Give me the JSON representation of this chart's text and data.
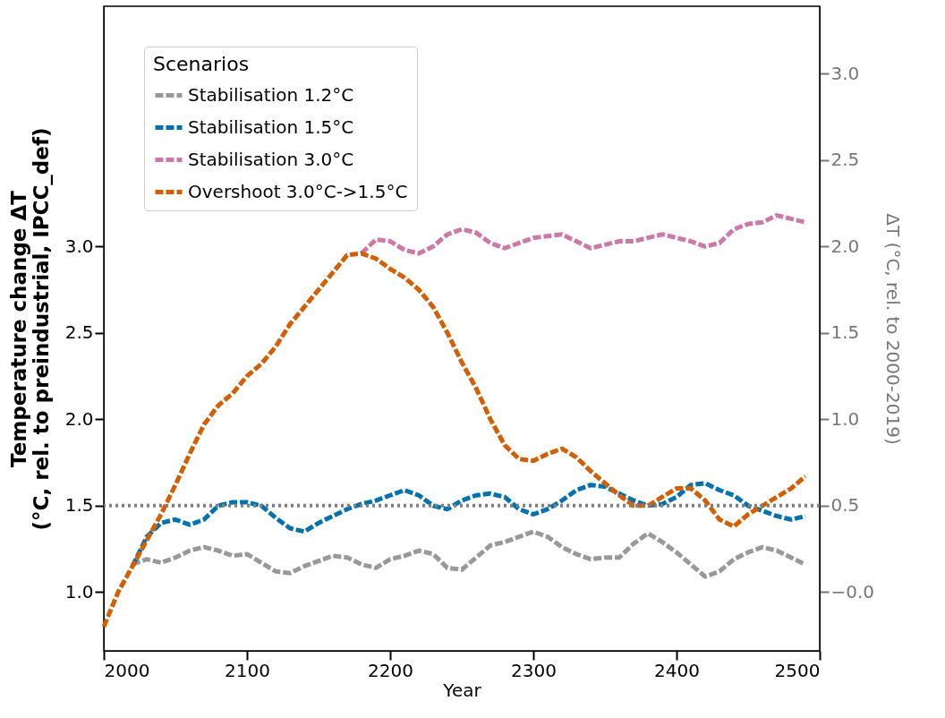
{
  "chart_data": {
    "type": "line",
    "xlabel": "Year",
    "ylabel": "Temperature change ΔT\n(°C, rel. to preindustrial, IPCC_def)",
    "y2label": "ΔT (°C, rel. to 2000-2019)",
    "legend_title": "Scenarios",
    "legend": "top left",
    "line_style": "dashed",
    "grid": false,
    "xlim": [
      2000,
      2500
    ],
    "xticks": [
      2000,
      2100,
      2200,
      2300,
      2400,
      2500
    ],
    "ylim": [
      0.66,
      4.39
    ],
    "yticks": [
      {
        "value": 1,
        "label": "1.0"
      },
      1.5,
      {
        "value": 2,
        "label": "2.0"
      },
      2.5,
      {
        "value": 3,
        "label": "3.0"
      }
    ],
    "y2lim": [
      -0.34,
      3.39
    ],
    "y2ticks": [
      {
        "value": 0,
        "label": "−0.0"
      },
      0.5,
      {
        "value": 1,
        "label": "1.0"
      },
      1.5,
      {
        "value": 2,
        "label": "2.0"
      },
      2.5,
      {
        "value": 3,
        "label": "3.0"
      }
    ],
    "ref_lines": [
      {
        "axis": "y",
        "value": 1.5,
        "color": "#808080",
        "line_style": "dotted"
      }
    ],
    "series": [
      {
        "name": "Stabilisation 1.2°C",
        "color": "#999999",
        "x": [
          2020,
          2030,
          2040,
          2050,
          2060,
          2070,
          2080,
          2090,
          2100,
          2110,
          2120,
          2130,
          2140,
          2150,
          2160,
          2170,
          2180,
          2190,
          2200,
          2210,
          2220,
          2230,
          2240,
          2250,
          2260,
          2270,
          2280,
          2290,
          2300,
          2310,
          2320,
          2330,
          2340,
          2350,
          2360,
          2370,
          2380,
          2390,
          2400,
          2410,
          2420,
          2430,
          2440,
          2450,
          2460,
          2470,
          2480,
          2490
        ],
        "values": [
          1.16,
          1.19,
          1.17,
          1.2,
          1.24,
          1.26,
          1.24,
          1.21,
          1.22,
          1.17,
          1.12,
          1.11,
          1.15,
          1.18,
          1.21,
          1.2,
          1.16,
          1.14,
          1.19,
          1.21,
          1.24,
          1.22,
          1.14,
          1.13,
          1.2,
          1.27,
          1.29,
          1.32,
          1.35,
          1.32,
          1.26,
          1.22,
          1.19,
          1.2,
          1.2,
          1.28,
          1.34,
          1.29,
          1.23,
          1.16,
          1.09,
          1.12,
          1.19,
          1.23,
          1.26,
          1.24,
          1.2,
          1.16
        ]
      },
      {
        "name": "Stabilisation 1.5°C",
        "color": "#0072b2",
        "x": [
          2020,
          2030,
          2040,
          2050,
          2060,
          2070,
          2080,
          2090,
          2100,
          2110,
          2120,
          2130,
          2140,
          2150,
          2160,
          2170,
          2180,
          2190,
          2200,
          2210,
          2220,
          2230,
          2240,
          2250,
          2260,
          2270,
          2280,
          2290,
          2300,
          2310,
          2320,
          2330,
          2340,
          2350,
          2360,
          2370,
          2380,
          2390,
          2400,
          2410,
          2420,
          2430,
          2440,
          2450,
          2460,
          2470,
          2480,
          2490
        ],
        "values": [
          1.15,
          1.32,
          1.4,
          1.42,
          1.39,
          1.42,
          1.5,
          1.52,
          1.52,
          1.5,
          1.43,
          1.37,
          1.35,
          1.4,
          1.44,
          1.48,
          1.51,
          1.53,
          1.56,
          1.59,
          1.56,
          1.5,
          1.48,
          1.53,
          1.56,
          1.57,
          1.55,
          1.48,
          1.45,
          1.48,
          1.53,
          1.59,
          1.62,
          1.61,
          1.57,
          1.53,
          1.5,
          1.51,
          1.55,
          1.62,
          1.63,
          1.59,
          1.56,
          1.5,
          1.47,
          1.44,
          1.42,
          1.44
        ]
      },
      {
        "name": "Stabilisation 3.0°C",
        "color": "#cc79a7",
        "x": [
          2180,
          2190,
          2200,
          2210,
          2220,
          2230,
          2240,
          2250,
          2260,
          2270,
          2280,
          2290,
          2300,
          2310,
          2320,
          2330,
          2340,
          2350,
          2360,
          2370,
          2380,
          2390,
          2400,
          2410,
          2420,
          2430,
          2440,
          2450,
          2460,
          2470,
          2480,
          2490
        ],
        "values": [
          2.96,
          3.04,
          3.03,
          2.98,
          2.96,
          3.0,
          3.07,
          3.1,
          3.08,
          3.02,
          2.99,
          3.02,
          3.05,
          3.06,
          3.07,
          3.03,
          2.99,
          3.01,
          3.03,
          3.03,
          3.05,
          3.07,
          3.05,
          3.03,
          3.0,
          3.02,
          3.1,
          3.13,
          3.14,
          3.18,
          3.16,
          3.14
        ]
      },
      {
        "name": "Overshoot 3.0°C->1.5°C",
        "color": "#d55e00",
        "x": [
          2000,
          2010,
          2020,
          2030,
          2040,
          2050,
          2060,
          2070,
          2080,
          2090,
          2100,
          2110,
          2120,
          2130,
          2140,
          2150,
          2160,
          2170,
          2180,
          2190,
          2200,
          2210,
          2220,
          2230,
          2240,
          2250,
          2260,
          2270,
          2280,
          2290,
          2300,
          2310,
          2320,
          2330,
          2340,
          2350,
          2360,
          2370,
          2380,
          2390,
          2400,
          2410,
          2420,
          2430,
          2440,
          2450,
          2460,
          2470,
          2480,
          2490
        ],
        "values": [
          0.8,
          1.0,
          1.15,
          1.3,
          1.45,
          1.62,
          1.8,
          1.97,
          2.08,
          2.15,
          2.25,
          2.32,
          2.42,
          2.55,
          2.65,
          2.75,
          2.85,
          2.95,
          2.96,
          2.93,
          2.87,
          2.82,
          2.75,
          2.65,
          2.5,
          2.33,
          2.18,
          2.0,
          1.85,
          1.77,
          1.76,
          1.8,
          1.83,
          1.78,
          1.7,
          1.63,
          1.56,
          1.5,
          1.5,
          1.55,
          1.6,
          1.6,
          1.53,
          1.42,
          1.38,
          1.45,
          1.5,
          1.55,
          1.6,
          1.67
        ]
      }
    ]
  }
}
